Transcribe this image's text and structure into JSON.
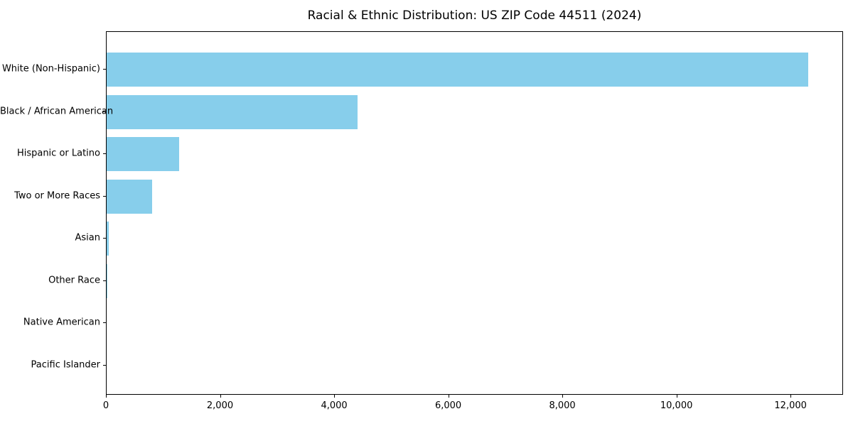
{
  "chart_data": {
    "type": "bar",
    "orientation": "horizontal",
    "title": "Racial & Ethnic Distribution: US ZIP Code 44511 (2024)",
    "categories": [
      "White (Non-Hispanic)",
      "Black / African American",
      "Hispanic or Latino",
      "Two or More Races",
      "Asian",
      "Other Race",
      "Native American",
      "Pacific Islander"
    ],
    "values": [
      12300,
      4400,
      1270,
      795,
      37,
      12,
      0,
      0
    ],
    "xlabel": "",
    "ylabel": "",
    "xlim": [
      0,
      12920
    ],
    "xtick_values": [
      0,
      2000,
      4000,
      6000,
      8000,
      10000,
      12000
    ],
    "xtick_labels": [
      "0",
      "2,000",
      "4,000",
      "6,000",
      "8,000",
      "10,000",
      "12,000"
    ],
    "grid": false,
    "legend": false,
    "bar_color": "#87CEEB",
    "background_color": "#ffffff",
    "spine_color": "#000000",
    "text_color": "#000000"
  }
}
